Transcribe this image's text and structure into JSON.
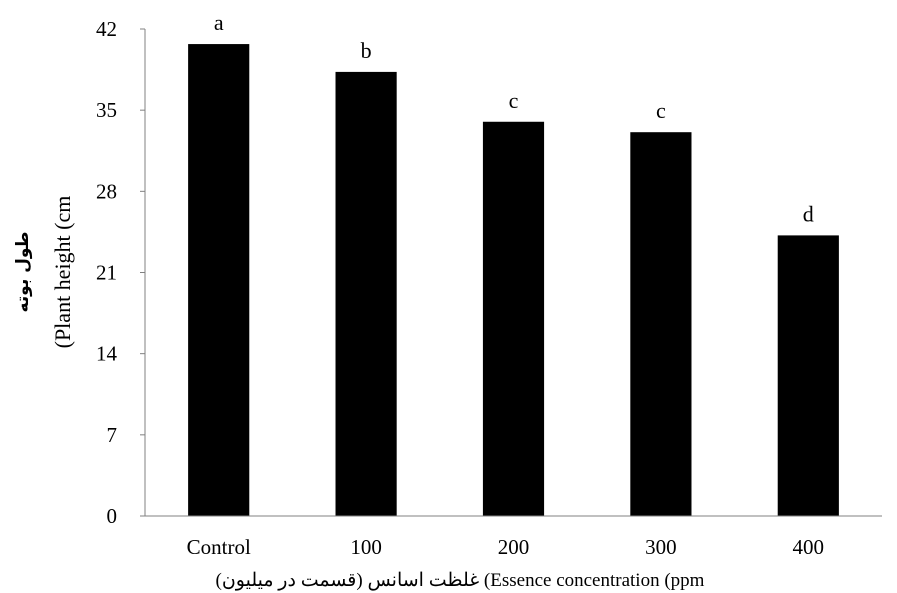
{
  "chart_data": {
    "type": "bar",
    "categories": [
      "Control",
      "100",
      "200",
      "300",
      "400"
    ],
    "values": [
      40.7,
      38.3,
      34.0,
      33.1,
      24.2
    ],
    "significance_letters": [
      "a",
      "b",
      "c",
      "c",
      "d"
    ],
    "ylim": [
      0,
      42
    ],
    "yticks": [
      0,
      7,
      14,
      21,
      28,
      35,
      42
    ],
    "ylabel_fa": "طول بوته",
    "ylabel_en": "(Plant height (cm",
    "xlabel": "غلظت اسانس (قسمت در میلیون) (Essence concentration (ppm",
    "bar_color": "#000000",
    "grid": false,
    "legend": "none"
  }
}
